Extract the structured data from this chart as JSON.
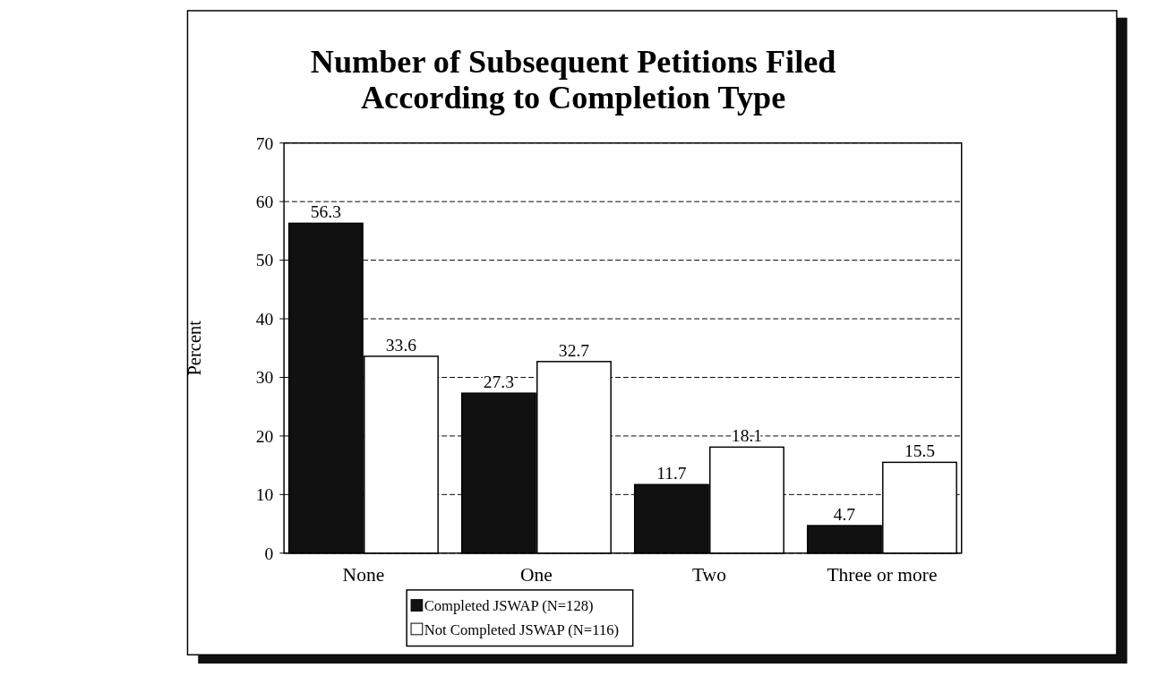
{
  "chart_data": {
    "type": "bar",
    "title": "Number of Subsequent Petitions Filed\nAccording to Completion Type",
    "ylabel": "Percent",
    "categories": [
      "None",
      "One",
      "Two",
      "Three or more"
    ],
    "series": [
      {
        "name": "Completed JSWAP (N=128)",
        "color": "#111111",
        "values": [
          56.3,
          27.3,
          11.7,
          4.7
        ]
      },
      {
        "name": "Not Completed JSWAP (N=116)",
        "color": "#ffffff",
        "values": [
          33.6,
          32.7,
          18.1,
          15.5
        ]
      }
    ],
    "ylim": [
      0,
      70
    ],
    "yticks": [
      0,
      10,
      20,
      30,
      40,
      50,
      60,
      70
    ],
    "grid": "y",
    "legend": "bottom",
    "data_labels": true
  }
}
